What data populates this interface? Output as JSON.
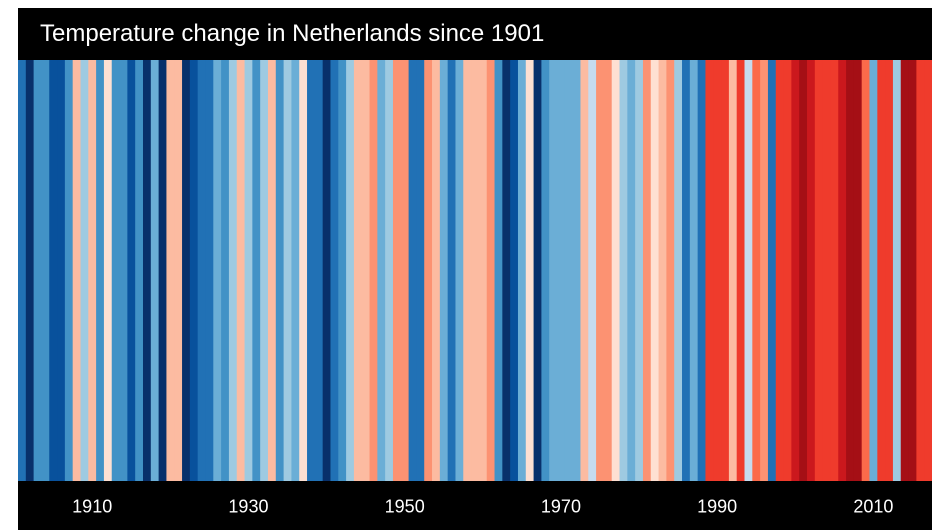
{
  "chart_data": {
    "type": "heatmap",
    "title": "Temperature change in Netherlands since 1901",
    "x_start": 1901,
    "x_end": 2017,
    "tick_labels": [
      "1910",
      "1930",
      "1950",
      "1970",
      "1990",
      "2010"
    ],
    "anomaly_levels": [
      -2.2,
      -3,
      -1.5,
      -1.5,
      -2.5,
      -2.5,
      -1.5,
      0.5,
      -0.5,
      1,
      -1.5,
      0.3,
      -1.5,
      -1.5,
      -2.5,
      -1.5,
      -3,
      -1,
      -3,
      0.5,
      0.5,
      -3,
      -2.5,
      -2,
      -2,
      -1,
      -1.5,
      -0.5,
      0.5,
      -0.5,
      -1.5,
      -0.5,
      1,
      -1.5,
      -0.5,
      -1,
      0.3,
      -2,
      -2,
      -3,
      -2,
      -1.5,
      -0.5,
      0.5,
      0.5,
      1.5,
      -1,
      -0.5,
      1.2,
      1.2,
      -2,
      -2,
      1.2,
      0.5,
      -1,
      -2,
      -1,
      0.5,
      0.5,
      0.5,
      1.5,
      -1.5,
      -3,
      -2.5,
      -1,
      0.3,
      -3,
      -1.5,
      -1,
      -1,
      -1,
      -1,
      0.5,
      -0.3,
      1.5,
      1.5,
      0.3,
      -0.5,
      -1,
      -0.5,
      1.2,
      0.3,
      0.5,
      1.2,
      -0.5,
      -2,
      -1,
      -2,
      2.3,
      2.3,
      2.5,
      0.5,
      2.5,
      -0.3,
      2,
      1.5,
      -2,
      2.5,
      2.5,
      2.8,
      3,
      2.8,
      2.3,
      2.5,
      2.3,
      2.8,
      3,
      3,
      2,
      -1,
      2.5,
      2.3,
      -0.5,
      3,
      3,
      2.5,
      2.5
    ],
    "colors": {
      "cold_3": "#08306b",
      "cold_2_5": "#08519c",
      "cold_2": "#2171b5",
      "cold_1_5": "#4292c6",
      "cold_1": "#6baed6",
      "cold_0_5": "#9ecae1",
      "cold_0_3": "#c6dbef",
      "neutral": "#deebf7",
      "warm_0_3": "#fee0d2",
      "warm_0_5": "#fcbba1",
      "warm_1": "#fc9272",
      "warm_1_5": "#fb6a4a",
      "warm_2": "#ef3b2c",
      "warm_2_5": "#cb181d",
      "warm_3": "#a50f15",
      "warm_3_5": "#67000d"
    },
    "grid": false,
    "legend": "none"
  }
}
